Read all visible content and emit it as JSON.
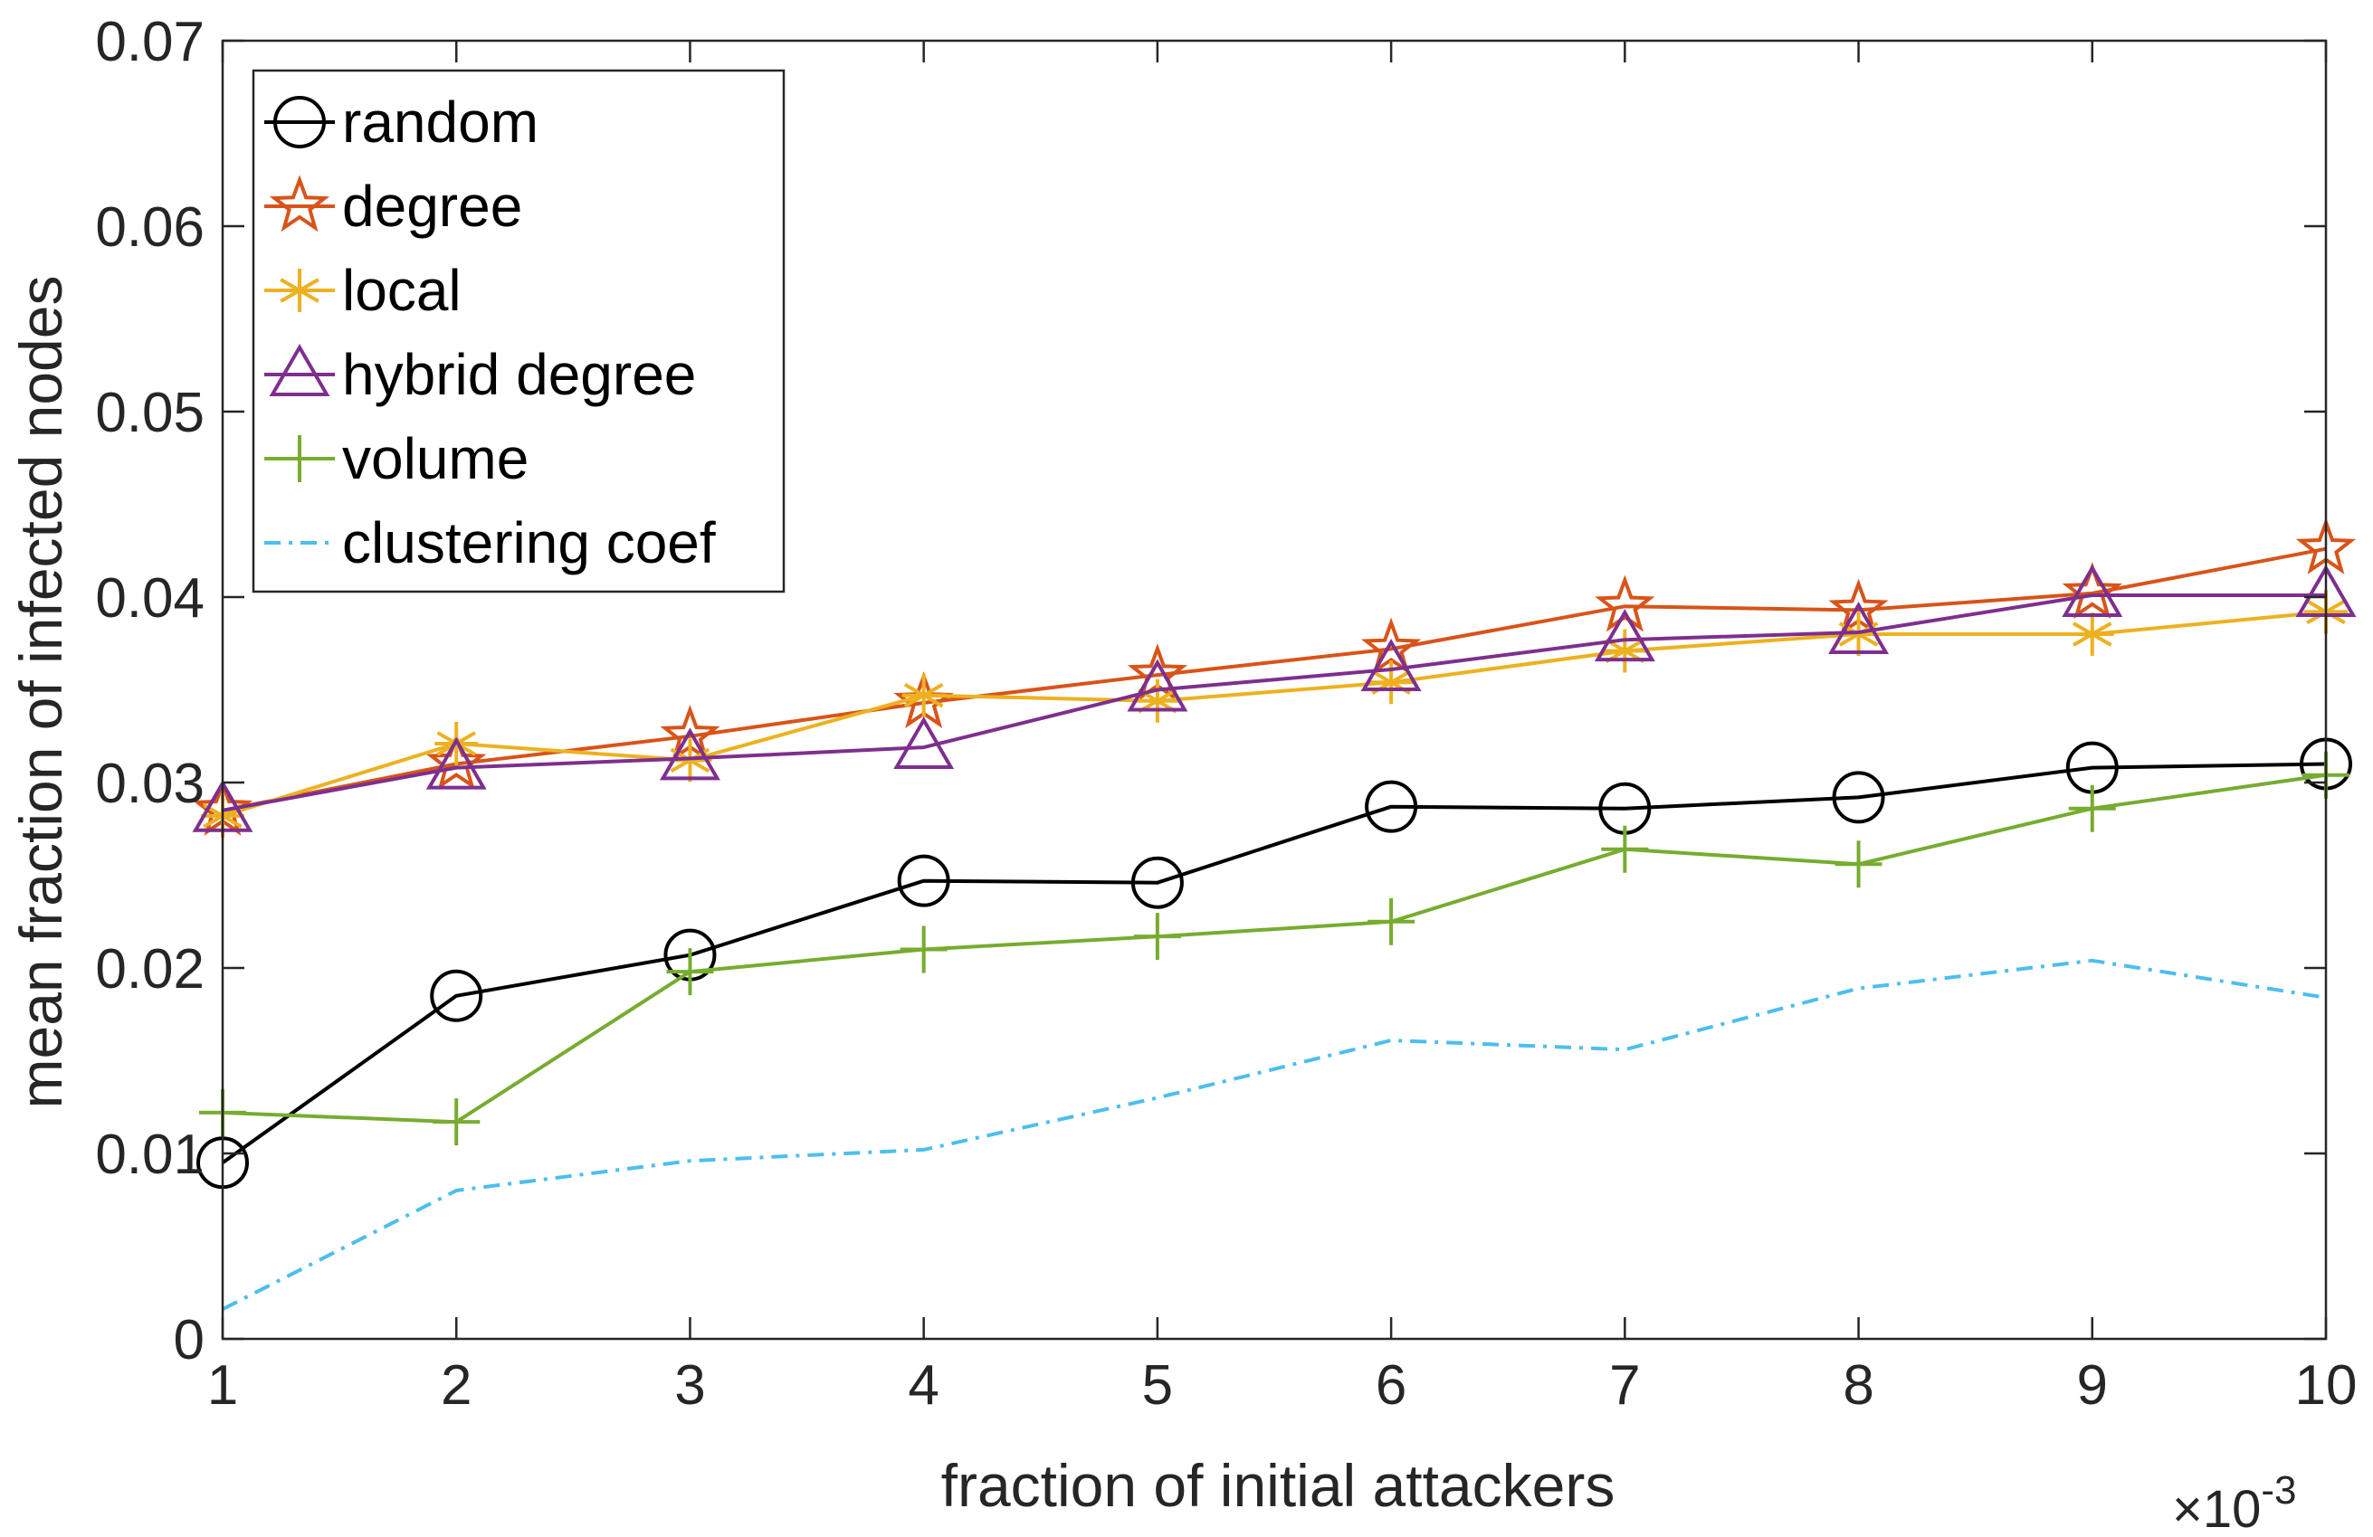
{
  "chart_data": {
    "type": "line",
    "title": "",
    "xlabel": "fraction of initial attackers",
    "ylabel": "mean fraction of infected nodes",
    "x_multiplier_label": "×10",
    "x_multiplier_exponent": "-3",
    "x": [
      1,
      2,
      3,
      4,
      5,
      6,
      7,
      8,
      9,
      10
    ],
    "x_tick_labels": [
      "1",
      "2",
      "3",
      "4",
      "5",
      "6",
      "7",
      "8",
      "9",
      "10"
    ],
    "xlim": [
      1,
      10
    ],
    "ylim": [
      0,
      0.07
    ],
    "y_ticks": [
      0,
      0.01,
      0.02,
      0.03,
      0.04,
      0.05,
      0.06,
      0.07
    ],
    "y_tick_labels": [
      "0",
      "0.01",
      "0.02",
      "0.03",
      "0.04",
      "0.05",
      "0.06",
      "0.07"
    ],
    "grid": false,
    "legend_position": "top-left",
    "series": [
      {
        "name": "random",
        "color": "#000000",
        "marker": "circle",
        "dash": "solid",
        "values": [
          0.0095,
          0.0185,
          0.0207,
          0.0247,
          0.0246,
          0.0287,
          0.0286,
          0.0292,
          0.0308,
          0.031
        ]
      },
      {
        "name": "degree",
        "color": "#D95319",
        "marker": "star",
        "dash": "solid",
        "values": [
          0.0285,
          0.031,
          0.0325,
          0.0343,
          0.0358,
          0.0372,
          0.0395,
          0.0393,
          0.0402,
          0.0426
        ]
      },
      {
        "name": "local",
        "color": "#EDB120",
        "marker": "asterisk",
        "dash": "solid",
        "values": [
          0.0282,
          0.0321,
          0.0312,
          0.0347,
          0.0344,
          0.0354,
          0.0371,
          0.038,
          0.038,
          0.0392
        ]
      },
      {
        "name": "hybrid degree",
        "color": "#7E2F8E",
        "marker": "triangle",
        "dash": "solid",
        "values": [
          0.0285,
          0.0308,
          0.0313,
          0.0319,
          0.035,
          0.0361,
          0.0377,
          0.0381,
          0.0401,
          0.0401
        ]
      },
      {
        "name": "volume",
        "color": "#77AC30",
        "marker": "plus",
        "dash": "solid",
        "values": [
          0.0122,
          0.0117,
          0.0198,
          0.021,
          0.0217,
          0.0225,
          0.0264,
          0.0256,
          0.0286,
          0.0304
        ]
      },
      {
        "name": "clustering coef",
        "color": "#4DBEEE",
        "marker": "none",
        "dash": "dashdot",
        "values": [
          0.0016,
          0.008,
          0.0096,
          0.0102,
          0.013,
          0.0161,
          0.0156,
          0.0189,
          0.0204,
          0.0184
        ]
      }
    ]
  }
}
